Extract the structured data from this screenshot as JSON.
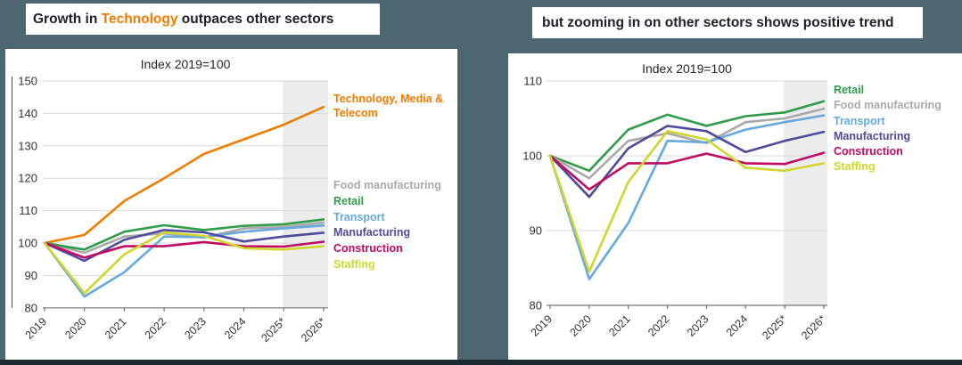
{
  "page": {
    "left_headline": {
      "prefix": "Growth in ",
      "highlight": "Technology",
      "suffix": " outpaces other sectors"
    },
    "right_headline": "but zooming in on other sectors shows positive trend"
  },
  "colors": {
    "background": "#4D6771",
    "footer_strip": "#1B2931",
    "panel_bg": "#FFFFFF",
    "headline_text": "#202028",
    "forecast_band": "#ECECEC",
    "grid": "#D8D8D8",
    "axis": "#767676",
    "y_axis_line": "#4D4D4D",
    "tick_label": "#333333",
    "tech": "#F07C00",
    "retail": "#2F9C48",
    "food": "#A9A9A9",
    "transport": "#66A9DE",
    "manufacturing": "#4F4B9C",
    "construction": "#C00A64",
    "staffing": "#CFD62E"
  },
  "chart_data": [
    {
      "type": "line",
      "title": "Index 2019=100",
      "categories": [
        "2019",
        "2020",
        "2021",
        "2022",
        "2023",
        "2024",
        "2025*",
        "2026*"
      ],
      "ylim": [
        80,
        150
      ],
      "yticks": [
        150,
        140,
        130,
        120,
        110,
        100,
        90,
        80
      ],
      "grid": true,
      "forecast_band_from_category": "2025*",
      "legend_position": "right",
      "series": [
        {
          "name": "Technology, Media & Telecom",
          "color_key": "tech",
          "values": [
            100,
            102.5,
            113,
            120,
            127.5,
            132,
            136.5,
            142
          ]
        },
        {
          "name": "Food manufacturing",
          "color_key": "food",
          "values": [
            100,
            97,
            102,
            103,
            101.7,
            104.5,
            105,
            106.3
          ]
        },
        {
          "name": "Retail",
          "color_key": "retail",
          "values": [
            100,
            98,
            103.5,
            105.5,
            104,
            105.3,
            105.8,
            107.3
          ]
        },
        {
          "name": "Transport",
          "color_key": "transport",
          "values": [
            100,
            83.5,
            91,
            102,
            101.8,
            103.5,
            104.5,
            105.4
          ]
        },
        {
          "name": "Manufacturing",
          "color_key": "manufacturing",
          "values": [
            100,
            94.5,
            101,
            104,
            103.3,
            100.5,
            102,
            103.2
          ]
        },
        {
          "name": "Construction",
          "color_key": "construction",
          "values": [
            100,
            95.5,
            99,
            99,
            100.3,
            99,
            98.9,
            100.4
          ]
        },
        {
          "name": "Staffing",
          "color_key": "staffing",
          "values": [
            100,
            84.5,
            96.5,
            103.3,
            102.2,
            98.4,
            98,
            99
          ]
        }
      ]
    },
    {
      "type": "line",
      "title": "Index 2019=100",
      "categories": [
        "2019",
        "2020",
        "2021",
        "2022",
        "2023",
        "2024",
        "2025*",
        "2026*"
      ],
      "ylim": [
        80,
        110
      ],
      "yticks": [
        110,
        100,
        90,
        80
      ],
      "grid": true,
      "forecast_band_from_category": "2025*",
      "legend_position": "right",
      "series": [
        {
          "name": "Retail",
          "color_key": "retail",
          "values": [
            100,
            98,
            103.5,
            105.5,
            104,
            105.3,
            105.8,
            107.3
          ]
        },
        {
          "name": "Food manufacturing",
          "color_key": "food",
          "values": [
            100,
            97,
            102,
            103,
            101.7,
            104.5,
            105,
            106.3
          ]
        },
        {
          "name": "Transport",
          "color_key": "transport",
          "values": [
            100,
            83.5,
            91,
            102,
            101.8,
            103.5,
            104.5,
            105.4
          ]
        },
        {
          "name": "Manufacturing",
          "color_key": "manufacturing",
          "values": [
            100,
            94.5,
            101,
            104,
            103.3,
            100.5,
            102,
            103.2
          ]
        },
        {
          "name": "Construction",
          "color_key": "construction",
          "values": [
            100,
            95.5,
            99,
            99,
            100.3,
            99,
            98.9,
            100.4
          ]
        },
        {
          "name": "Staffing",
          "color_key": "staffing",
          "values": [
            100,
            84.5,
            96.5,
            103.3,
            102.2,
            98.4,
            98,
            99
          ]
        }
      ]
    }
  ]
}
